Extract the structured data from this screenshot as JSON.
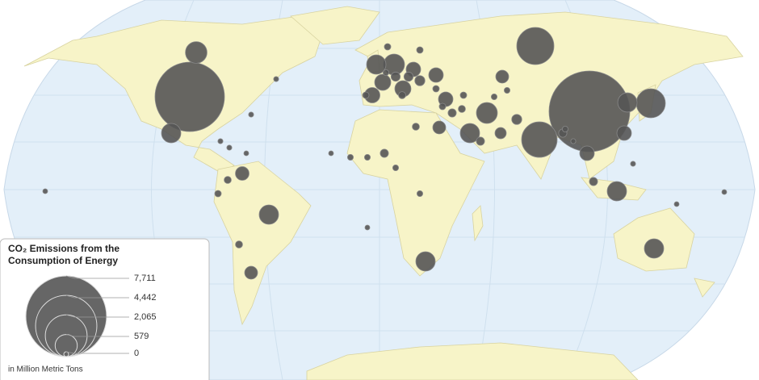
{
  "legend": {
    "title": "CO₂ Emissions from the Consumption of Energy",
    "sizes": [
      {
        "value": 7711,
        "label": "7,711"
      },
      {
        "value": 4442,
        "label": "4,442"
      },
      {
        "value": 2065,
        "label": "2,065"
      },
      {
        "value": 579,
        "label": "579"
      },
      0
    ],
    "unit": "in Million Metric Tons"
  },
  "bubbles": [
    7711,
    5700,
    1630,
    1490,
    1000,
    550,
    444,
    520,
    444,
    444,
    444,
    444,
    520,
    444,
    440,
    444,
    308,
    308,
    280,
    250,
    250,
    250,
    197,
    250,
    250,
    197,
    197,
    220,
    150,
    120,
    120,
    100,
    100,
    80,
    80,
    80,
    80,
    80,
    60,
    60,
    60,
    60,
    60,
    50,
    50,
    50,
    50,
    50,
    50,
    50,
    40,
    40,
    40,
    40,
    40,
    40,
    40,
    40,
    30,
    30,
    30,
    30,
    30,
    30,
    20,
    20,
    20,
    20,
    20,
    20
  ]
}
